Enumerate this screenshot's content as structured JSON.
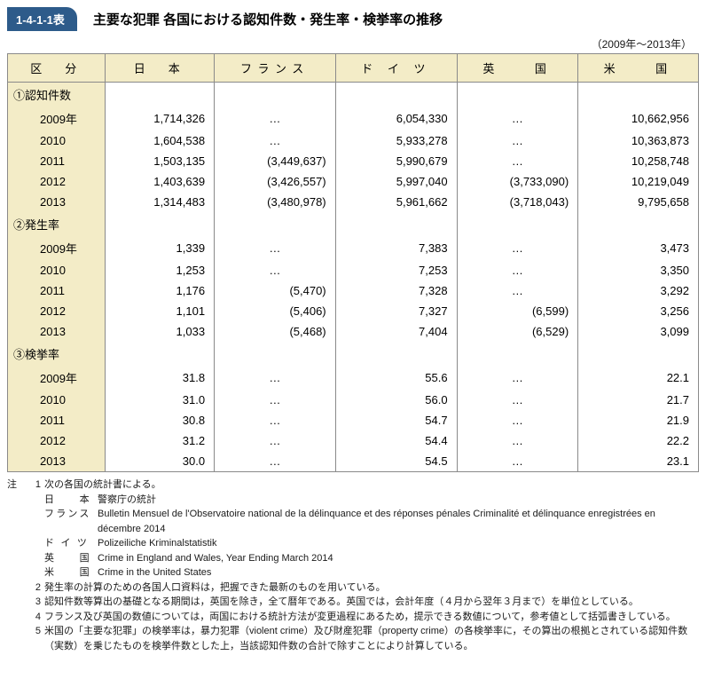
{
  "header": {
    "tag": "1-4-1-1表",
    "title": "主要な犯罪 各国における認知件数・発生率・検挙率の推移",
    "period": "（2009年〜2013年）"
  },
  "columns": [
    "区　分",
    "日　本",
    "フランス",
    "ド イ ツ",
    "英　　国",
    "米　　国"
  ],
  "sections": [
    {
      "label": "①認知件数",
      "rows": [
        {
          "year": "2009年",
          "values": [
            "1,714,326",
            "…",
            "6,054,330",
            "…",
            "10,662,956"
          ]
        },
        {
          "year": "2010",
          "values": [
            "1,604,538",
            "…",
            "5,933,278",
            "…",
            "10,363,873"
          ]
        },
        {
          "year": "2011",
          "values": [
            "1,503,135",
            "(3,449,637)",
            "5,990,679",
            "…",
            "10,258,748"
          ]
        },
        {
          "year": "2012",
          "values": [
            "1,403,639",
            "(3,426,557)",
            "5,997,040",
            "(3,733,090)",
            "10,219,049"
          ]
        },
        {
          "year": "2013",
          "values": [
            "1,314,483",
            "(3,480,978)",
            "5,961,662",
            "(3,718,043)",
            "9,795,658"
          ]
        }
      ]
    },
    {
      "label": "②発生率",
      "rows": [
        {
          "year": "2009年",
          "values": [
            "1,339",
            "…",
            "7,383",
            "…",
            "3,473"
          ]
        },
        {
          "year": "2010",
          "values": [
            "1,253",
            "…",
            "7,253",
            "…",
            "3,350"
          ]
        },
        {
          "year": "2011",
          "values": [
            "1,176",
            "(5,470)",
            "7,328",
            "…",
            "3,292"
          ]
        },
        {
          "year": "2012",
          "values": [
            "1,101",
            "(5,406)",
            "7,327",
            "(6,599)",
            "3,256"
          ]
        },
        {
          "year": "2013",
          "values": [
            "1,033",
            "(5,468)",
            "7,404",
            "(6,529)",
            "3,099"
          ]
        }
      ]
    },
    {
      "label": "③検挙率",
      "rows": [
        {
          "year": "2009年",
          "values": [
            "31.8",
            "…",
            "55.6",
            "…",
            "22.1"
          ]
        },
        {
          "year": "2010",
          "values": [
            "31.0",
            "…",
            "56.0",
            "…",
            "21.7"
          ]
        },
        {
          "year": "2011",
          "values": [
            "30.8",
            "…",
            "54.7",
            "…",
            "21.9"
          ]
        },
        {
          "year": "2012",
          "values": [
            "31.2",
            "…",
            "54.4",
            "…",
            "22.2"
          ]
        },
        {
          "year": "2013",
          "values": [
            "30.0",
            "…",
            "54.5",
            "…",
            "23.1"
          ]
        }
      ]
    }
  ],
  "notes": {
    "prefix": "注",
    "items": [
      {
        "num": "1",
        "text": "次の各国の統計書による。",
        "sources": [
          {
            "country": "日　　本",
            "text": "警察庁の統計"
          },
          {
            "country": "フランス",
            "text": "Bulletin Mensuel de l'Observatoire national de la délinquance et des réponses pénales Criminalité et délinquance enregistrées en décembre 2014"
          },
          {
            "country": "ド イ ツ",
            "text": "Polizeiliche Kriminalstatistik"
          },
          {
            "country": "英　　国",
            "text": "Crime in England and Wales, Year Ending March 2014"
          },
          {
            "country": "米　　国",
            "text": "Crime in the United States"
          }
        ]
      },
      {
        "num": "2",
        "text": "発生率の計算のための各国人口資料は，把握できた最新のものを用いている。"
      },
      {
        "num": "3",
        "text": "認知件数等算出の基礎となる期間は，英国を除き，全て暦年である。英国では，会計年度（４月から翌年３月まで）を単位としている。"
      },
      {
        "num": "4",
        "text": "フランス及び英国の数値については，両国における統計方法が変更過程にあるため，提示できる数値について，参考値として括弧書きしている。"
      },
      {
        "num": "5",
        "text": "米国の「主要な犯罪」の検挙率は，暴力犯罪（violent crime）及び財産犯罪（property crime）の各検挙率に，その算出の根拠とされている認知件数（実数）を乗じたものを検挙件数とした上，当該認知件数の合計で除すことにより計算している。"
      }
    ]
  },
  "style": {
    "header_bg": "#f3ecc7",
    "border_color": "#8a8a8a",
    "tag_bg": "#2d5b8a",
    "tag_color": "#ffffff",
    "font_size_table": 13,
    "font_size_notes": 11
  }
}
